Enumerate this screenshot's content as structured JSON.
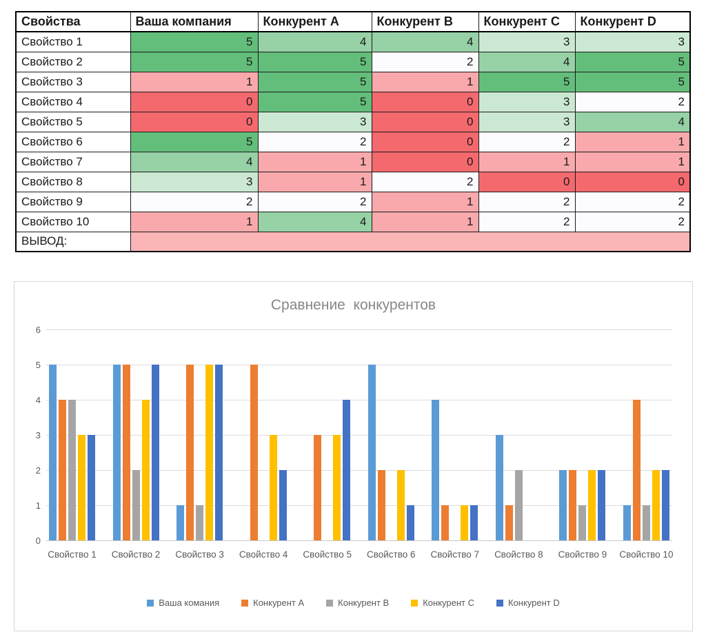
{
  "table": {
    "headers": [
      "Свойства",
      "Ваша компания",
      "Конкурент A",
      "Конкурент B",
      "Конкурент C",
      "Конкурент D"
    ],
    "rows": [
      {
        "label": "Свойство 1",
        "values": [
          5,
          4,
          4,
          3,
          3
        ]
      },
      {
        "label": "Свойство 2",
        "values": [
          5,
          5,
          2,
          4,
          5
        ]
      },
      {
        "label": "Свойство 3",
        "values": [
          1,
          5,
          1,
          5,
          5
        ]
      },
      {
        "label": "Свойство 4",
        "values": [
          0,
          5,
          0,
          3,
          2
        ]
      },
      {
        "label": "Свойство 5",
        "values": [
          0,
          3,
          0,
          3,
          4
        ]
      },
      {
        "label": "Свойство 6",
        "values": [
          5,
          2,
          0,
          2,
          1
        ]
      },
      {
        "label": "Свойство 7",
        "values": [
          4,
          1,
          0,
          1,
          1
        ]
      },
      {
        "label": "Свойство 8",
        "values": [
          3,
          1,
          2,
          0,
          0
        ]
      },
      {
        "label": "Свойство 9",
        "values": [
          2,
          2,
          1,
          2,
          2
        ]
      },
      {
        "label": "Свойство 10",
        "values": [
          1,
          4,
          1,
          2,
          2
        ]
      }
    ],
    "footer_label": "ВЫВОД:",
    "footer_color": "#FBB5B7",
    "value_colors": {
      "0": "#F4696E",
      "1": "#F9A9AC",
      "2": "#FCFBFE",
      "3": "#CBE8D2",
      "4": "#97D1A6",
      "5": "#63BE7B"
    }
  },
  "chart_data": {
    "type": "bar",
    "title": "Сравнение  конкурентов",
    "title_color": "#878787",
    "categories": [
      "Свойство 1",
      "Свойство 2",
      "Свойство 3",
      "Свойство 4",
      "Свойство 5",
      "Свойство 6",
      "Свойство 7",
      "Свойство 8",
      "Свойство 9",
      "Свойство 10"
    ],
    "series": [
      {
        "name": "Ваша комания",
        "color": "#5B9BD5",
        "values": [
          5,
          5,
          1,
          0,
          0,
          5,
          4,
          3,
          2,
          1
        ]
      },
      {
        "name": "Конкурент A",
        "color": "#ED7D31",
        "values": [
          4,
          5,
          5,
          5,
          3,
          2,
          1,
          1,
          2,
          4
        ]
      },
      {
        "name": "Конкурент B",
        "color": "#A5A5A5",
        "values": [
          4,
          2,
          1,
          0,
          0,
          0,
          0,
          2,
          1,
          1
        ]
      },
      {
        "name": "Конкурент C",
        "color": "#FFC000",
        "values": [
          3,
          4,
          5,
          3,
          3,
          2,
          1,
          0,
          2,
          2
        ]
      },
      {
        "name": "Конкурент D",
        "color": "#4472C4",
        "values": [
          3,
          5,
          5,
          2,
          4,
          1,
          1,
          0,
          2,
          2
        ]
      }
    ],
    "xlabel": "",
    "ylabel": "",
    "ylim": [
      0,
      6
    ],
    "yticks": [
      0,
      1,
      2,
      3,
      4,
      5,
      6
    ],
    "grid": true,
    "legend_position": "bottom"
  }
}
